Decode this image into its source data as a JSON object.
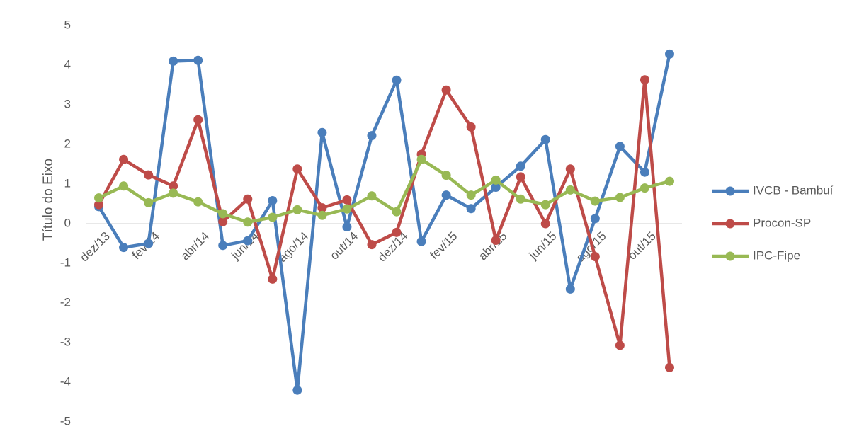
{
  "chart_data": {
    "type": "line",
    "title": "",
    "xlabel": "",
    "ylabel": "Título do Eixo",
    "ylim": [
      -5,
      5
    ],
    "yticks": [
      "-5",
      "-4",
      "-3",
      "-2",
      "-1",
      "0",
      "1",
      "2",
      "3",
      "4",
      "5"
    ],
    "x": [
      "dez/13",
      "jan/14",
      "fev/14",
      "mar/14",
      "abr/14",
      "mai/14",
      "jun/14",
      "jul/14",
      "ago/14",
      "set/14",
      "out/14",
      "nov/14",
      "dez/14",
      "jan/15",
      "fev/15",
      "mar/15",
      "abr/15",
      "mai/15",
      "jun/15",
      "jul/15",
      "ago/15",
      "set/15",
      "out/15",
      "nov/15"
    ],
    "x_tick_labels": [
      "dez/13",
      "",
      "fev/14",
      "",
      "abr/14",
      "",
      "jun/14",
      "",
      "ago/14",
      "",
      "out/14",
      "",
      "dez/14",
      "",
      "fev/15",
      "",
      "abr/15",
      "",
      "jun/15",
      "",
      "ago/15",
      "",
      "out/15",
      ""
    ],
    "grid": "none",
    "legend_position": "right",
    "series": [
      {
        "name": "IVCB - Bambuí",
        "color": "#4a7ebb",
        "values": [
          0.43,
          -0.6,
          -0.5,
          4.1,
          4.12,
          -0.55,
          -0.43,
          0.58,
          -4.2,
          2.3,
          -0.08,
          2.22,
          3.62,
          -0.45,
          0.72,
          0.38,
          0.92,
          1.45,
          2.12,
          -1.65,
          0.13,
          1.95,
          1.3,
          4.28
        ]
      },
      {
        "name": "Procon-SP",
        "color": "#be4b48",
        "values": [
          0.48,
          1.62,
          1.23,
          0.95,
          2.62,
          0.05,
          0.62,
          -1.4,
          1.38,
          0.4,
          0.6,
          -0.53,
          -0.22,
          1.75,
          3.37,
          2.44,
          -0.42,
          1.18,
          0.0,
          1.38,
          -0.83,
          -3.07,
          3.63,
          -3.63
        ]
      },
      {
        "name": "IPC-Fipe",
        "color": "#98b954",
        "values": [
          0.65,
          0.95,
          0.53,
          0.77,
          0.55,
          0.25,
          0.04,
          0.16,
          0.35,
          0.21,
          0.37,
          0.7,
          0.3,
          1.62,
          1.22,
          0.72,
          1.1,
          0.62,
          0.48,
          0.85,
          0.57,
          0.66,
          0.9,
          1.07
        ]
      }
    ]
  }
}
